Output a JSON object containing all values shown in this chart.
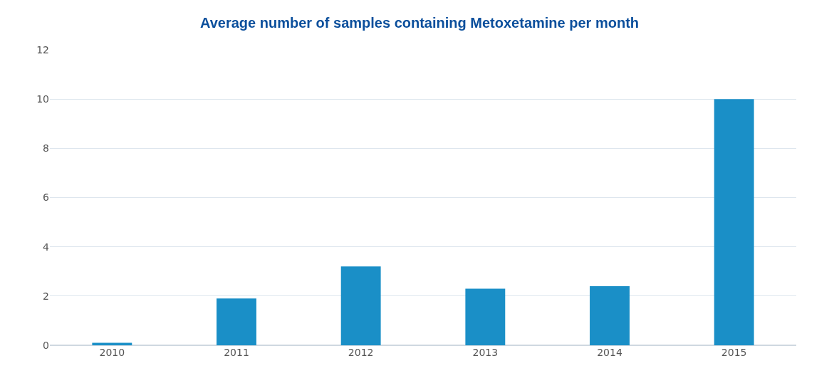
{
  "chart_data": {
    "type": "bar",
    "title": "Average number of samples containing Metoxetamine per month",
    "categories": [
      "2010",
      "2011",
      "2012",
      "2013",
      "2014",
      "2015"
    ],
    "values": [
      0.1,
      1.9,
      3.2,
      2.3,
      2.4,
      10.0
    ],
    "color": "#1a8fc7",
    "ylim": [
      0,
      12
    ],
    "yticks": [
      0,
      2,
      4,
      6,
      8,
      10,
      12
    ],
    "grid": "y"
  }
}
